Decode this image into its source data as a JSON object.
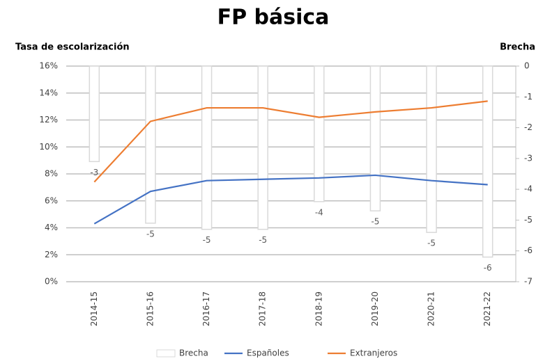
{
  "chart_data": {
    "type": "bar",
    "title": "FP básica",
    "y_label": "Tasa de escolarización",
    "y2_label": "Brecha",
    "categories": [
      "2014-15",
      "2015-16",
      "2016-17",
      "2017-18",
      "2018-19",
      "2019-20",
      "2020-21",
      "2021-22"
    ],
    "series": [
      {
        "name": "Brecha",
        "type": "bar",
        "axis": "y2",
        "color": "#d9d9d9",
        "values": [
          -3.1,
          -5.1,
          -5.3,
          -5.3,
          -4.4,
          -4.7,
          -5.4,
          -6.2
        ],
        "value_labels": [
          "-3",
          "-5",
          "-5",
          "-5",
          "-4",
          "-5",
          "-5",
          "-6"
        ]
      },
      {
        "name": "Españoles",
        "type": "line",
        "color": "#4472c4",
        "values": [
          4.3,
          6.7,
          7.5,
          7.6,
          7.7,
          7.9,
          7.5,
          7.2
        ]
      },
      {
        "name": "Extranjeros",
        "type": "line",
        "color": "#ed7d31",
        "values": [
          7.4,
          11.9,
          12.9,
          12.9,
          12.2,
          12.6,
          12.9,
          13.4
        ]
      }
    ],
    "ylim": [
      0,
      16
    ],
    "yticks": [
      {
        "value": 0,
        "label": "0%"
      },
      {
        "value": 2,
        "label": "2%"
      },
      {
        "value": 4,
        "label": "4%"
      },
      {
        "value": 6,
        "label": "6%"
      },
      {
        "value": 8,
        "label": "8%"
      },
      {
        "value": 10,
        "label": "10%"
      },
      {
        "value": 12,
        "label": "12%"
      },
      {
        "value": 14,
        "label": "14%"
      },
      {
        "value": 16,
        "label": "16%"
      }
    ],
    "y2lim": [
      -7,
      0
    ],
    "y2ticks": [
      0,
      -1,
      -2,
      -3,
      -4,
      -5,
      -6,
      -7
    ],
    "grid": true,
    "legend": "bottom"
  }
}
